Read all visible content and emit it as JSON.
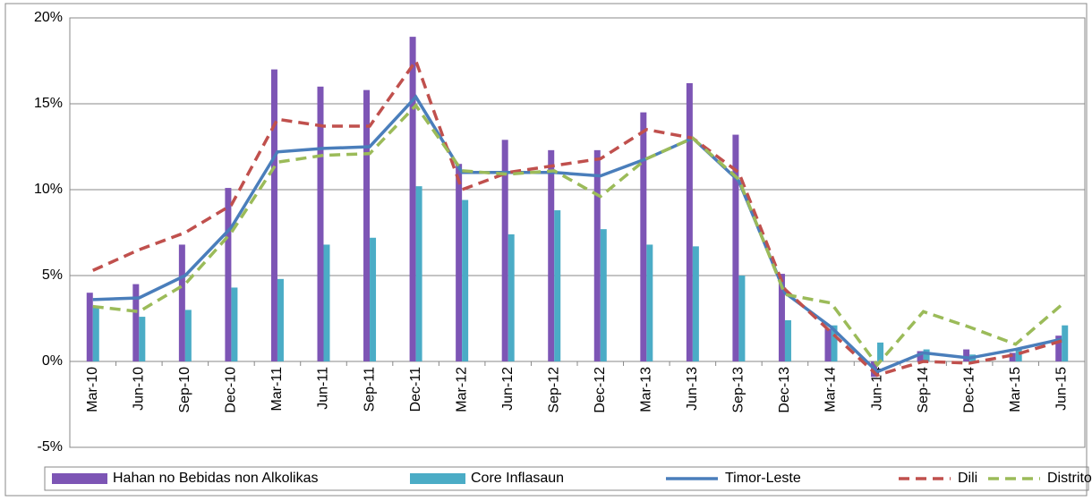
{
  "chart_data": {
    "type": "bar-line",
    "categories": [
      "Mar-10",
      "Jun-10",
      "Sep-10",
      "Dec-10",
      "Mar-11",
      "Jun-11",
      "Sep-11",
      "Dec-11",
      "Mar-12",
      "Jun-12",
      "Sep-12",
      "Dec-12",
      "Mar-13",
      "Jun-13",
      "Sep-13",
      "Dec-13",
      "Mar-14",
      "Jun-14",
      "Sep-14",
      "Dec-14",
      "Mar-15",
      "Jun-15"
    ],
    "series": [
      {
        "name": "Hahan no Bebidas non Alkolikas",
        "kind": "bar",
        "color": "#7d55b5",
        "values": [
          4.0,
          4.5,
          6.8,
          10.1,
          17.0,
          16.0,
          15.8,
          18.9,
          11.5,
          12.9,
          12.3,
          12.3,
          14.5,
          16.2,
          13.2,
          5.1,
          1.9,
          -0.9,
          0.6,
          0.7,
          0.5,
          1.5
        ]
      },
      {
        "name": "Core Inflasaun",
        "kind": "bar",
        "color": "#4bacc6",
        "values": [
          3.2,
          2.6,
          3.0,
          4.3,
          4.8,
          6.8,
          7.2,
          10.2,
          9.4,
          7.4,
          8.8,
          7.7,
          6.8,
          6.7,
          5.0,
          2.4,
          2.1,
          1.1,
          0.7,
          0.4,
          0.7,
          2.1
        ]
      },
      {
        "name": "Timor-Leste",
        "kind": "line",
        "color": "#4a7ebb",
        "dash": false,
        "values": [
          3.6,
          3.7,
          5.0,
          7.8,
          12.2,
          12.4,
          12.5,
          15.4,
          11.0,
          11.0,
          11.0,
          10.8,
          11.8,
          13.0,
          10.5,
          4.0,
          2.0,
          -0.6,
          0.5,
          0.2,
          0.7,
          1.3
        ]
      },
      {
        "name": "Dili",
        "kind": "line",
        "color": "#c0504d",
        "dash": true,
        "values": [
          5.3,
          6.5,
          7.5,
          9.1,
          14.1,
          13.7,
          13.7,
          17.5,
          10.0,
          11.0,
          11.4,
          11.8,
          13.5,
          13.0,
          11.0,
          4.2,
          1.7,
          -0.8,
          0.0,
          -0.1,
          0.4,
          1.2
        ]
      },
      {
        "name": "Distrito",
        "kind": "line",
        "color": "#9bbb59",
        "dash": true,
        "values": [
          3.2,
          2.9,
          4.5,
          7.5,
          11.6,
          12.0,
          12.1,
          14.9,
          11.1,
          10.9,
          11.1,
          9.6,
          11.8,
          13.0,
          10.6,
          3.9,
          3.4,
          -0.2,
          2.9,
          2.0,
          1.0,
          3.3
        ]
      }
    ],
    "ylim": [
      -5,
      20
    ],
    "yticks": [
      {
        "value": -5,
        "label": "-5%"
      },
      {
        "value": 0,
        "label": "0%"
      },
      {
        "value": 5,
        "label": "5%"
      },
      {
        "value": 10,
        "label": "10%"
      },
      {
        "value": 15,
        "label": "15%"
      },
      {
        "value": 20,
        "label": "20%"
      }
    ],
    "grid": true,
    "legend": "bottom"
  }
}
